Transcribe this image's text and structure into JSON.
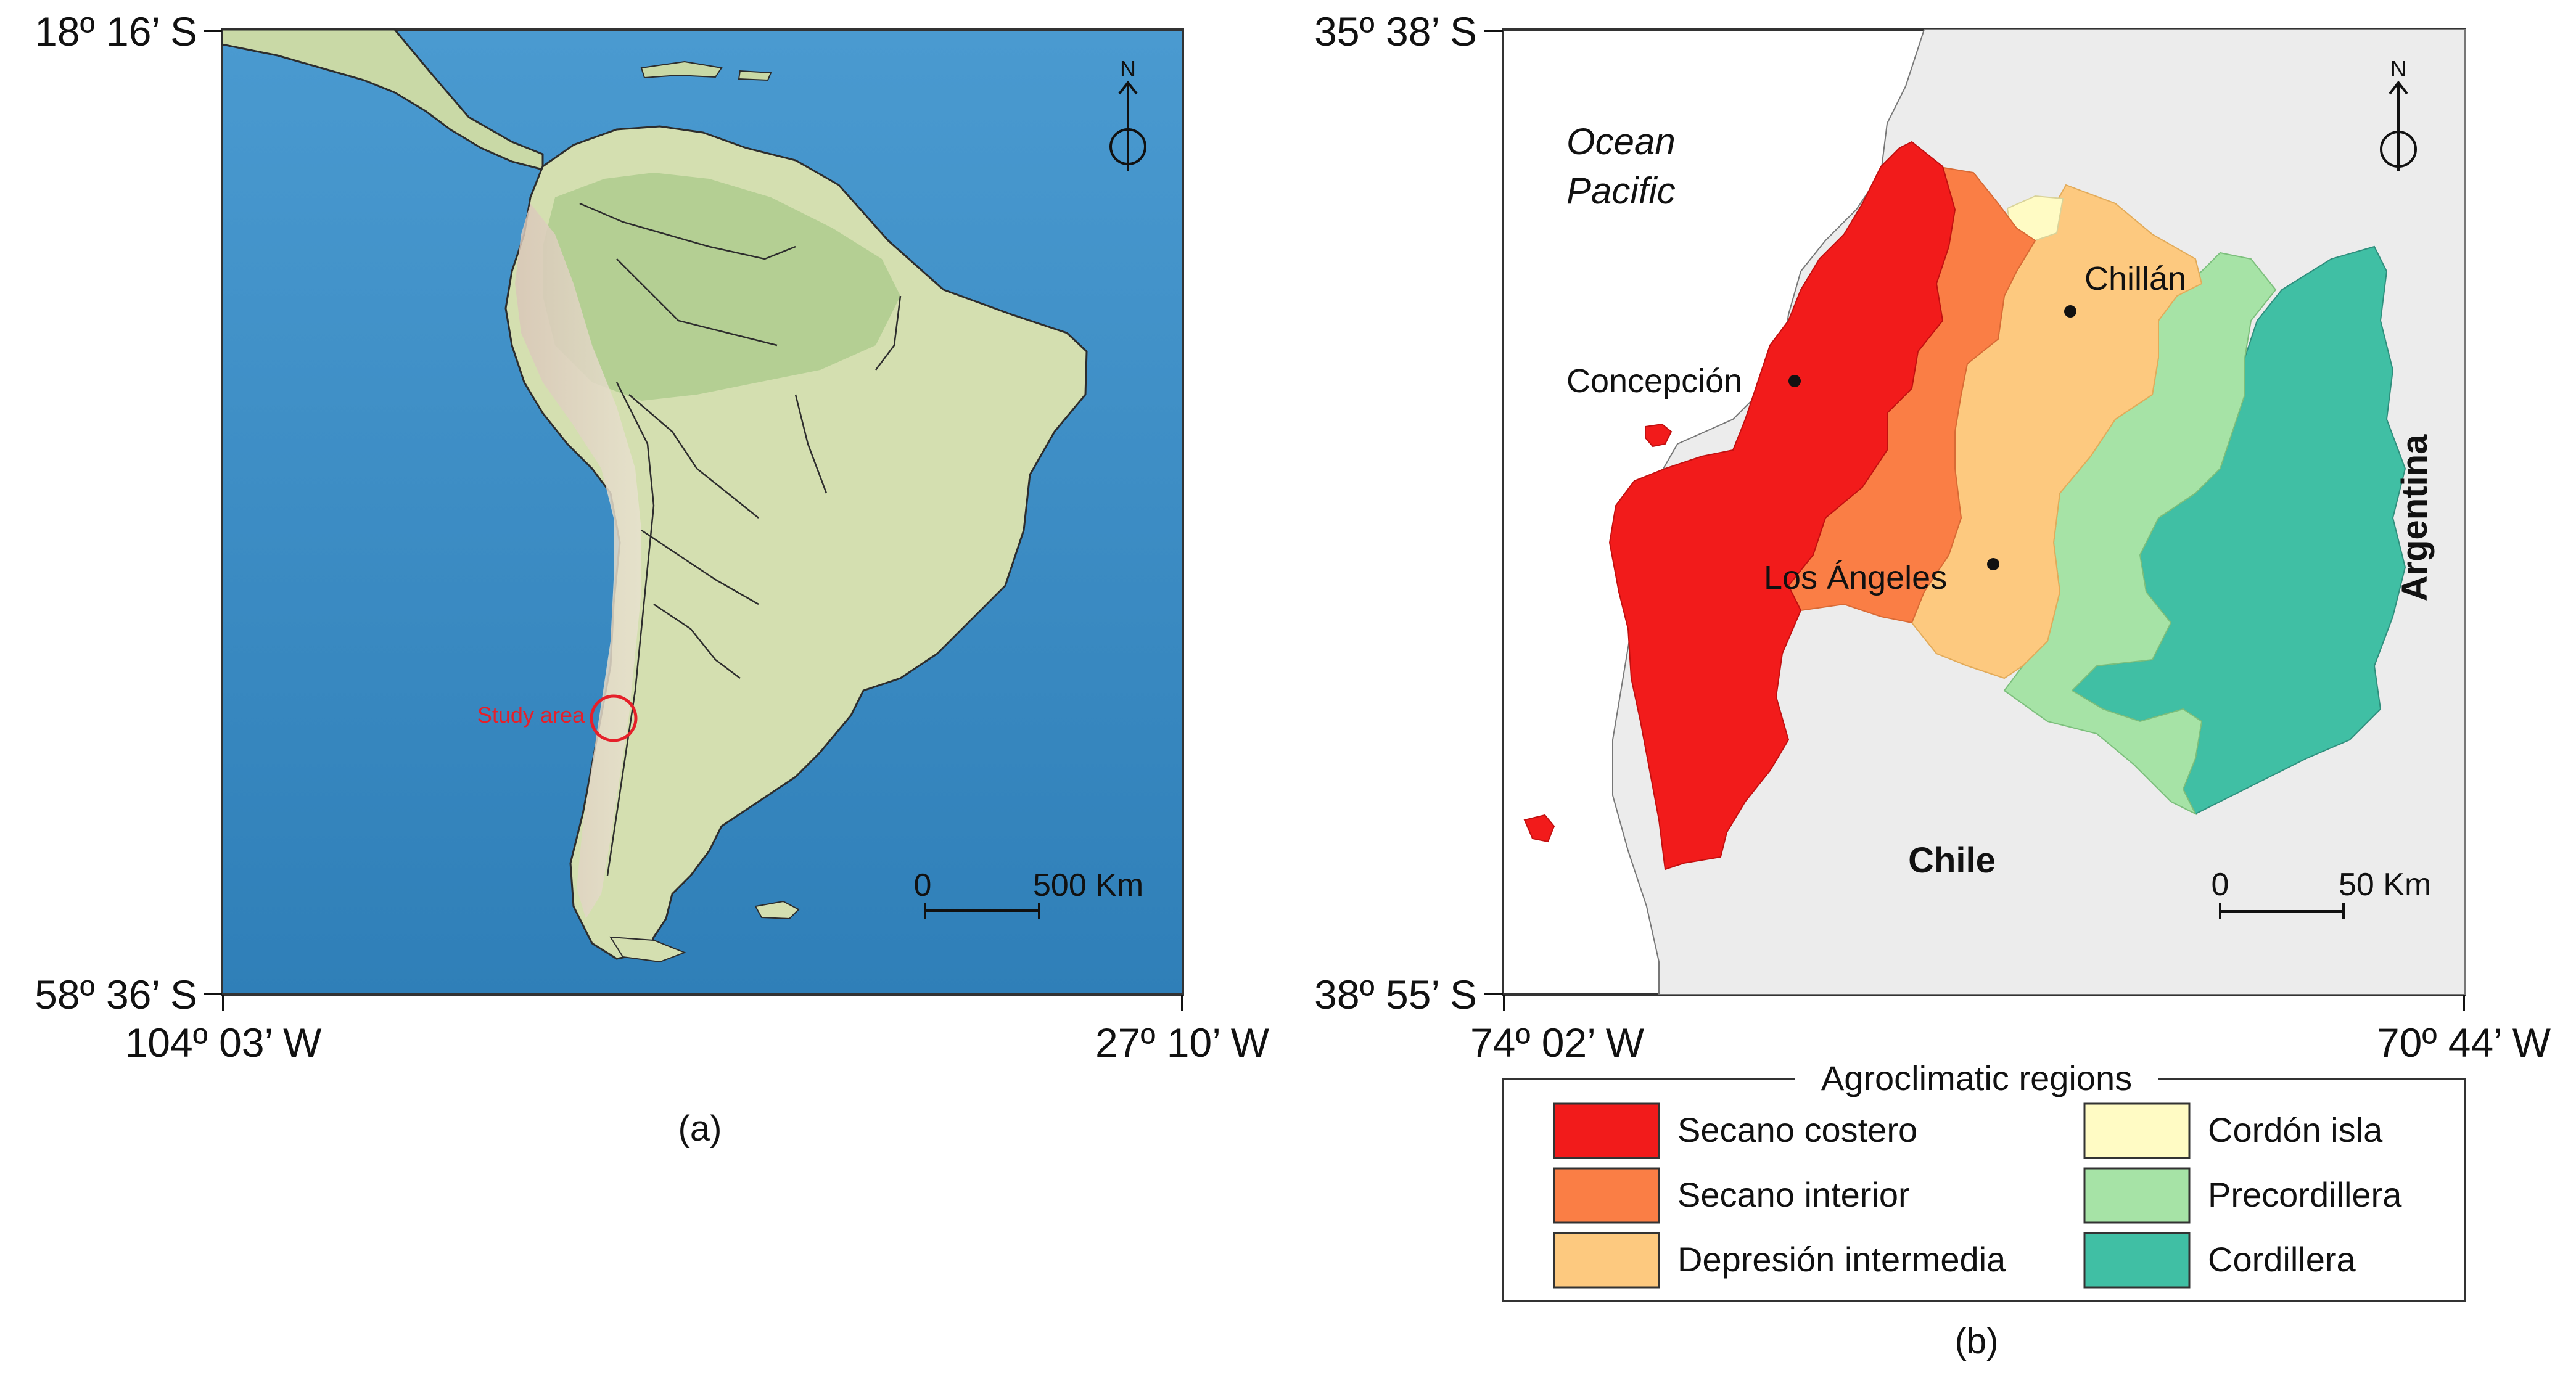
{
  "panel_a": {
    "coords": {
      "lat_top": "18º 16’ S",
      "lat_bottom": "58º 36’ S",
      "lon_left": "104º 03’ W",
      "lon_right": "27º 10’ W"
    },
    "study_area_label": "Study area",
    "north_label": "N",
    "scale": {
      "start": "0",
      "end": "500 Km"
    },
    "caption": "(a)",
    "colors": {
      "ocean": "#3d8fc4",
      "land": "#cfdcb0",
      "study_area": "#e5202a"
    }
  },
  "panel_b": {
    "coords": {
      "lat_top": "35º 38’ S",
      "lat_bottom": "38º 55’ S",
      "lon_left": "74º 02’ W",
      "lon_right": "70º 44’ W"
    },
    "ocean_label_line1": "Ocean",
    "ocean_label_line2": "Pacific",
    "country_chile": "Chile",
    "country_argentina": "Argentina",
    "cities": [
      "Chillán",
      "Concepción",
      "Los Ángeles"
    ],
    "north_label": "N",
    "scale": {
      "start": "0",
      "end": "50 Km"
    },
    "caption": "(b)"
  },
  "legend": {
    "title": "Agroclimatic regions",
    "items": [
      {
        "label": "Secano costero",
        "color": "#f21b1b"
      },
      {
        "label": "Secano interior",
        "color": "#fa7e45"
      },
      {
        "label": "Depresión intermedia",
        "color": "#fdc97f"
      },
      {
        "label": "Cordón isla",
        "color": "#fffbc4"
      },
      {
        "label": "Precordillera",
        "color": "#a6e3a6"
      },
      {
        "label": "Cordillera",
        "color": "#40bfa4"
      }
    ]
  }
}
